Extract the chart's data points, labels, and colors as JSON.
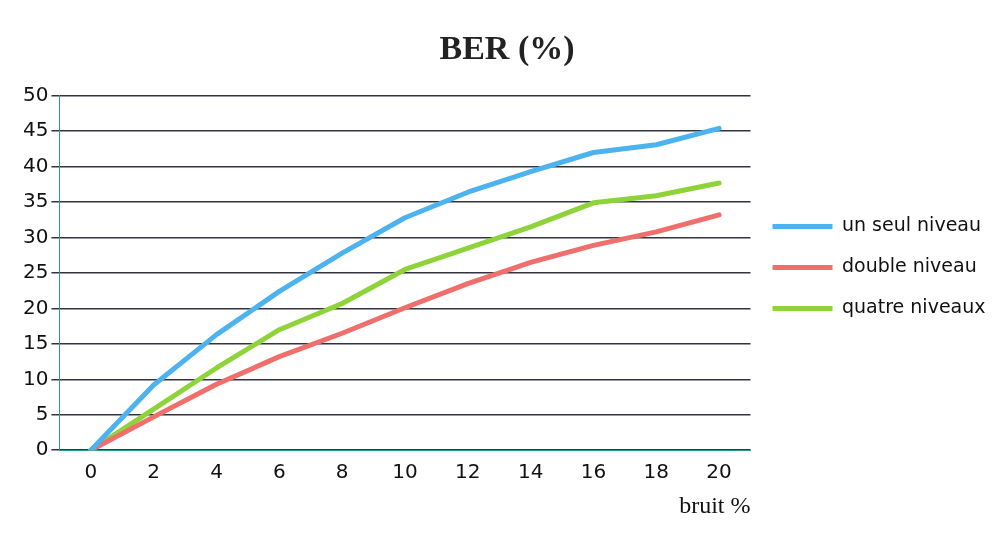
{
  "chart_data": {
    "type": "line",
    "title": "BER (%)",
    "xlabel": "bruit %",
    "categories": [
      "0",
      "2",
      "4",
      "6",
      "8",
      "10",
      "12",
      "14",
      "16",
      "18",
      "20"
    ],
    "series": [
      {
        "name": "un seul niveau",
        "color": "#4db3ef",
        "values": [
          0,
          9.2,
          16.3,
          22.4,
          27.8,
          32.8,
          36.4,
          39.3,
          42,
          43.1,
          45.4
        ]
      },
      {
        "name": "double niveau",
        "color": "#ef6f6c",
        "values": [
          0,
          4.7,
          9.3,
          13.2,
          16.5,
          20.1,
          23.5,
          26.5,
          28.9,
          30.8,
          33.2
        ]
      },
      {
        "name": "quatre niveaux",
        "color": "#8fd33a",
        "values": [
          0,
          5.8,
          11.6,
          17,
          20.7,
          25.5,
          28.5,
          31.5,
          34.9,
          35.9,
          37.7
        ]
      }
    ],
    "ylim": [
      0,
      50
    ],
    "yticks": [
      0,
      5,
      10,
      15,
      20,
      25,
      30,
      35,
      40,
      45,
      50
    ],
    "grid": "y",
    "legend": "right",
    "marker": "none",
    "line_style": "solid"
  }
}
